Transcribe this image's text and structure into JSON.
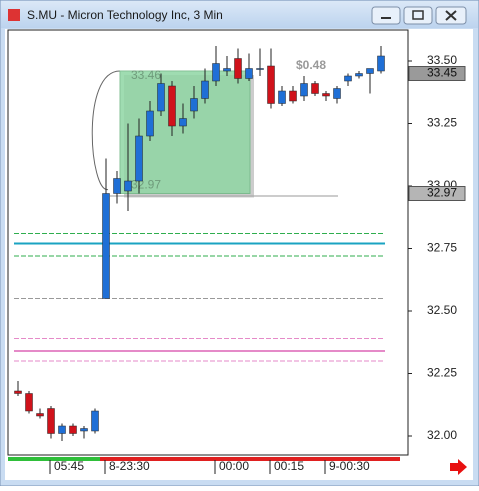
{
  "chart_data": {
    "type": "candlestick",
    "title": "S.MU - Micron Technology Inc, 3 Min",
    "categories": [
      null,
      null,
      null,
      "05:45",
      null,
      null,
      null,
      null,
      "8-23:30",
      null,
      null,
      null,
      null,
      null,
      null,
      null,
      null,
      null,
      "00:00",
      null,
      null,
      null,
      null,
      "00:15",
      null,
      null,
      null,
      null,
      "9-00:30",
      null,
      null,
      null,
      null,
      null
    ],
    "open": [
      32.18,
      32.17,
      32.09,
      32.11,
      32.01,
      32.04,
      32.02,
      32.02,
      32.55,
      32.97,
      32.98,
      33.02,
      33.2,
      33.3,
      33.4,
      33.24,
      33.3,
      33.35,
      33.42,
      33.46,
      33.51,
      33.43,
      33.47,
      33.48,
      33.33,
      33.38,
      33.36,
      33.41,
      33.37,
      33.35,
      33.42,
      33.44,
      33.45,
      33.46
    ],
    "high": [
      32.22,
      32.18,
      32.11,
      32.12,
      32.05,
      32.05,
      32.04,
      32.11,
      33.11,
      33.06,
      33.25,
      33.27,
      33.34,
      33.45,
      33.42,
      33.33,
      33.4,
      33.47,
      33.56,
      33.52,
      33.55,
      33.53,
      33.55,
      33.55,
      33.4,
      33.4,
      33.44,
      33.42,
      33.38,
      33.4,
      33.45,
      33.46,
      33.47,
      33.56
    ],
    "low": [
      32.16,
      32.09,
      32.07,
      31.99,
      31.98,
      32.0,
      31.99,
      32.01,
      32.55,
      32.93,
      32.9,
      32.97,
      33.18,
      33.28,
      33.2,
      33.21,
      33.27,
      33.33,
      33.4,
      33.44,
      33.41,
      33.42,
      33.44,
      33.31,
      33.32,
      33.33,
      33.34,
      33.36,
      33.34,
      33.33,
      33.4,
      33.43,
      33.37,
      33.45
    ],
    "close": [
      32.17,
      32.1,
      32.08,
      32.01,
      32.04,
      32.01,
      32.03,
      32.1,
      32.97,
      33.03,
      33.02,
      33.2,
      33.3,
      33.41,
      33.24,
      33.27,
      33.35,
      33.42,
      33.49,
      33.47,
      33.43,
      33.47,
      33.47,
      33.33,
      33.38,
      33.34,
      33.41,
      33.37,
      33.36,
      33.39,
      33.44,
      33.45,
      33.47,
      33.52
    ],
    "up_color": "#1f6fd6",
    "down_color": "#d0121b",
    "ylim": [
      31.924,
      33.624
    ],
    "yticks": [
      {
        "value": 32.0,
        "label": "32.00"
      },
      {
        "value": 32.25,
        "label": "32.25"
      },
      {
        "value": 32.5,
        "label": "32.50"
      },
      {
        "value": 32.75,
        "label": "32.75"
      },
      {
        "value": 33.0,
        "label": "33.00"
      },
      {
        "value": 33.25,
        "label": "33.25"
      },
      {
        "value": 33.5,
        "label": "33.50"
      }
    ],
    "price_markers": [
      33.45,
      32.97
    ],
    "range_box": {
      "high": 33.46,
      "low": 32.97,
      "change_label": "$0.48"
    },
    "levels": [
      {
        "value": 32.81,
        "color": "#2fae4e",
        "dash": true
      },
      {
        "value": 32.77,
        "color": "#1aa3c2",
        "dash": false
      },
      {
        "value": 32.72,
        "color": "#2fae4e",
        "dash": true
      },
      {
        "value": 32.55,
        "color": "#999999",
        "dash": true
      },
      {
        "value": 32.39,
        "color": "#e58ac8",
        "dash": true
      },
      {
        "value": 32.34,
        "color": "#e58ac8",
        "dash": false
      },
      {
        "value": 32.3,
        "color": "#e58ac8",
        "dash": true
      }
    ],
    "ref_line": 32.96
  }
}
